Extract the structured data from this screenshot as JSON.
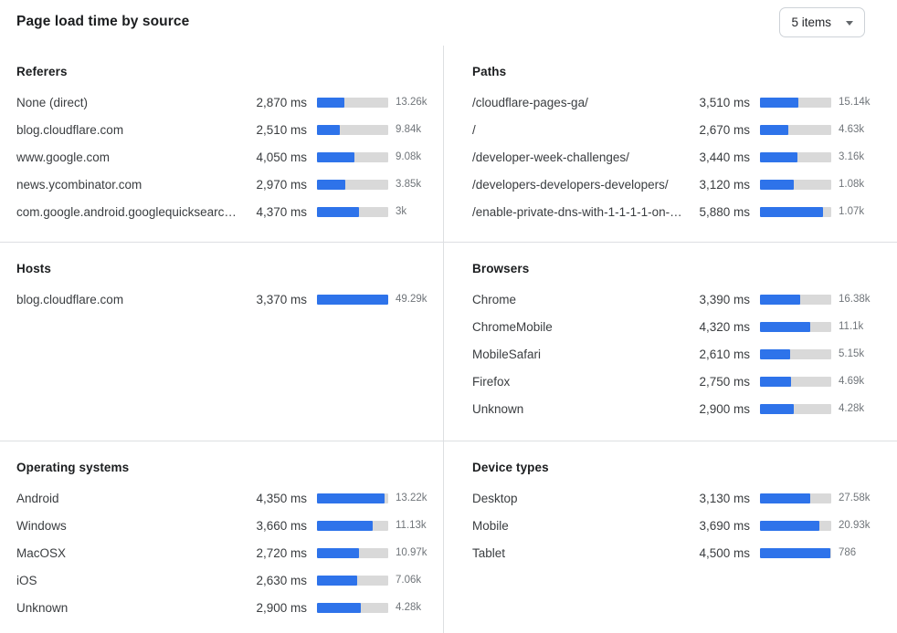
{
  "header": {
    "title": "Page load time by source",
    "items_dropdown": {
      "value": "5 items"
    }
  },
  "colors": {
    "bar_fill": "#2E73EA",
    "bar_track": "#D9D9D9",
    "divider": "#DDDFE2",
    "count_text": "#70757A"
  },
  "sections": [
    {
      "id": "referers",
      "title": "Referers",
      "rows": [
        {
          "label": "None (direct)",
          "value": "2,870 ms",
          "ms": 2870,
          "count": "13.26k",
          "pct": 39
        },
        {
          "label": "blog.cloudflare.com",
          "value": "2,510 ms",
          "ms": 2510,
          "count": "9.84k",
          "pct": 32
        },
        {
          "label": "www.google.com",
          "value": "4,050 ms",
          "ms": 4050,
          "count": "9.08k",
          "pct": 53
        },
        {
          "label": "news.ycombinator.com",
          "value": "2,970 ms",
          "ms": 2970,
          "count": "3.85k",
          "pct": 40
        },
        {
          "label": "com.google.android.googlequicksearc…",
          "value": "4,370 ms",
          "ms": 4370,
          "count": "3k",
          "pct": 59
        }
      ]
    },
    {
      "id": "paths",
      "title": "Paths",
      "rows": [
        {
          "label": "/cloudflare-pages-ga/",
          "value": "3,510 ms",
          "ms": 3510,
          "count": "15.14k",
          "pct": 54
        },
        {
          "label": "/",
          "value": "2,670 ms",
          "ms": 2670,
          "count": "4.63k",
          "pct": 40
        },
        {
          "label": "/developer-week-challenges/",
          "value": "3,440 ms",
          "ms": 3440,
          "count": "3.16k",
          "pct": 52
        },
        {
          "label": "/developers-developers-developers/",
          "value": "3,120 ms",
          "ms": 3120,
          "count": "1.08k",
          "pct": 48
        },
        {
          "label": "/enable-private-dns-with-1-1-1-1-on-…",
          "value": "5,880 ms",
          "ms": 5880,
          "count": "1.07k",
          "pct": 89
        }
      ]
    },
    {
      "id": "hosts",
      "title": "Hosts",
      "rows": [
        {
          "label": "blog.cloudflare.com",
          "value": "3,370 ms",
          "ms": 3370,
          "count": "49.29k",
          "pct": 100
        }
      ]
    },
    {
      "id": "browsers",
      "title": "Browsers",
      "rows": [
        {
          "label": "Chrome",
          "value": "3,390 ms",
          "ms": 3390,
          "count": "16.38k",
          "pct": 56
        },
        {
          "label": "ChromeMobile",
          "value": "4,320 ms",
          "ms": 4320,
          "count": "11.1k",
          "pct": 71
        },
        {
          "label": "MobileSafari",
          "value": "2,610 ms",
          "ms": 2610,
          "count": "5.15k",
          "pct": 42
        },
        {
          "label": "Firefox",
          "value": "2,750 ms",
          "ms": 2750,
          "count": "4.69k",
          "pct": 44
        },
        {
          "label": "Unknown",
          "value": "2,900 ms",
          "ms": 2900,
          "count": "4.28k",
          "pct": 47
        }
      ]
    },
    {
      "id": "operating-systems",
      "title": "Operating systems",
      "rows": [
        {
          "label": "Android",
          "value": "4,350 ms",
          "ms": 4350,
          "count": "13.22k",
          "pct": 95
        },
        {
          "label": "Windows",
          "value": "3,660 ms",
          "ms": 3660,
          "count": "11.13k",
          "pct": 78
        },
        {
          "label": "MacOSX",
          "value": "2,720 ms",
          "ms": 2720,
          "count": "10.97k",
          "pct": 59
        },
        {
          "label": "iOS",
          "value": "2,630 ms",
          "ms": 2630,
          "count": "7.06k",
          "pct": 56
        },
        {
          "label": "Unknown",
          "value": "2,900 ms",
          "ms": 2900,
          "count": "4.28k",
          "pct": 61
        }
      ]
    },
    {
      "id": "device-types",
      "title": "Device types",
      "rows": [
        {
          "label": "Desktop",
          "value": "3,130 ms",
          "ms": 3130,
          "count": "27.58k",
          "pct": 70
        },
        {
          "label": "Mobile",
          "value": "3,690 ms",
          "ms": 3690,
          "count": "20.93k",
          "pct": 83
        },
        {
          "label": "Tablet",
          "value": "4,500 ms",
          "ms": 4500,
          "count": "786",
          "pct": 99
        }
      ]
    }
  ]
}
